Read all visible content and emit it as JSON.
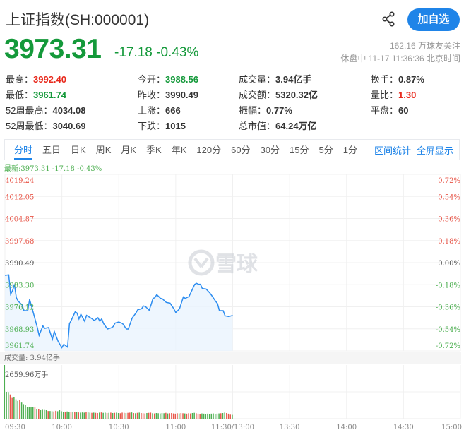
{
  "header": {
    "title": "上证指数(SH:000001)",
    "add_button": "加自选",
    "price": "3973.31",
    "change": "-17.18",
    "change_pct": "-0.43%",
    "followers": "162.16 万球友关注",
    "status": "休盘中 11-17 11:36:36 北京时间"
  },
  "stats": [
    {
      "label": "最高：",
      "value": "3992.40",
      "color": "red"
    },
    {
      "label": "今开：",
      "value": "3988.56",
      "color": "green"
    },
    {
      "label": "成交量：",
      "value": "3.94亿手",
      "color": ""
    },
    {
      "label": "换手：",
      "value": "0.87%",
      "color": ""
    },
    {
      "label": "最低：",
      "value": "3961.74",
      "color": "green"
    },
    {
      "label": "昨收：",
      "value": "3990.49",
      "color": ""
    },
    {
      "label": "成交额：",
      "value": "5320.32亿",
      "color": ""
    },
    {
      "label": "量比：",
      "value": "1.30",
      "color": "red"
    },
    {
      "label": "52周最高：",
      "value": "4034.08",
      "color": ""
    },
    {
      "label": "上涨：",
      "value": "666",
      "color": ""
    },
    {
      "label": "振幅：",
      "value": "0.77%",
      "color": ""
    },
    {
      "label": "平盘：",
      "value": "60",
      "color": ""
    },
    {
      "label": "52周最低：",
      "value": "3040.69",
      "color": ""
    },
    {
      "label": "下跌：",
      "value": "1015",
      "color": ""
    },
    {
      "label": "总市值：",
      "value": "64.24万亿",
      "color": ""
    }
  ],
  "tabs": [
    "分时",
    "五日",
    "日K",
    "周K",
    "月K",
    "季K",
    "年K",
    "120分",
    "60分",
    "30分",
    "15分",
    "5分",
    "1分"
  ],
  "active_tab": "分时",
  "tab_actions": [
    "区间统计",
    "全屏显示"
  ],
  "latest": "最新:3973.31 -17.18 -0.43%",
  "watermark": "雪球",
  "volume_label": "成交量: 3.94亿手",
  "colors": {
    "up": "#e8574a",
    "down": "#4caf50",
    "line": "#2b8cf0",
    "accent": "#1f84e8"
  },
  "chart_data": {
    "type": "line",
    "prev_close": 3990.49,
    "ylim": [
      3961.74,
      4019.24
    ],
    "y_ticks": [
      "4019.24",
      "4012.05",
      "4004.87",
      "3997.68",
      "3990.49",
      "3983.30",
      "3976.12",
      "3968.93",
      "3961.74"
    ],
    "pct_ticks": [
      "0.72%",
      "0.54%",
      "0.36%",
      "0.18%",
      "0.00%",
      "-0.18%",
      "-0.36%",
      "-0.54%",
      "-0.72%"
    ],
    "x_ticks": [
      "09:30",
      "10:00",
      "10:30",
      "11:00",
      "11:30/13:00",
      "13:30",
      "14:00",
      "14:30",
      "15:00"
    ],
    "price": {
      "minutes": [
        0,
        2,
        3,
        4,
        5,
        6,
        7,
        9,
        10,
        12,
        13,
        15,
        17,
        18,
        20,
        21,
        23,
        25,
        26,
        28,
        30,
        31,
        33,
        34,
        35,
        37,
        38,
        39,
        40,
        42,
        43,
        45,
        46,
        47,
        49,
        50,
        51,
        52,
        54,
        56,
        57,
        58,
        60,
        62,
        64,
        65,
        67,
        69,
        70,
        72,
        73,
        74,
        76,
        77,
        78,
        79,
        80,
        82,
        83,
        85,
        87,
        89,
        90,
        92,
        94,
        95,
        97,
        100,
        101,
        102,
        103,
        104,
        106,
        108,
        109,
        111,
        112,
        113,
        115,
        116,
        118,
        120
      ],
      "values": [
        3986.35,
        3986.5,
        3980.22,
        3981.37,
        3983.44,
        3979.07,
        3977.92,
        3976.77,
        3974.85,
        3974.85,
        3978.53,
        3974.08,
        3969.48,
        3966.8,
        3969.87,
        3969.1,
        3969.33,
        3965.5,
        3968.1,
        3964.88,
        3962.81,
        3963.89,
        3962.97,
        3970.63,
        3971.78,
        3974.47,
        3974.08,
        3972.17,
        3973.7,
        3971.4,
        3973.32,
        3972.55,
        3972.17,
        3971.63,
        3972.55,
        3971.4,
        3972.17,
        3970.63,
        3968.87,
        3969.25,
        3969.64,
        3970.79,
        3971.17,
        3970.63,
        3968.87,
        3968.87,
        3972.4,
        3974.08,
        3975.16,
        3975.46,
        3976.38,
        3976.23,
        3975.0,
        3976.77,
        3978.84,
        3979.07,
        3980.06,
        3978.84,
        3978.68,
        3977.53,
        3977.3,
        3975.46,
        3974.24,
        3975.46,
        3979.3,
        3978.84,
        3979.45,
        3983.44,
        3983.74,
        3983.44,
        3983.44,
        3982.06,
        3981.9,
        3980.6,
        3979.76,
        3977.92,
        3977.15,
        3974.85,
        3974.85,
        3973.16,
        3972.93,
        3973.31
      ]
    },
    "volume": {
      "max_label": "2659.96万手",
      "max": 2659.96,
      "values": [
        2659.96,
        1330,
        1320,
        1200,
        1030,
        1060,
        960,
        880,
        920,
        800,
        720,
        680,
        590,
        580,
        560,
        570,
        570,
        480,
        470,
        420,
        440,
        430,
        420,
        380,
        380,
        370,
        360,
        390,
        370,
        420,
        370,
        350,
        340,
        360,
        330,
        350,
        340,
        320,
        330,
        310,
        300,
        310,
        300,
        320,
        310,
        300,
        290,
        300,
        290,
        280,
        300,
        310,
        290,
        300,
        280,
        290,
        300,
        280,
        290,
        300,
        280,
        270,
        300,
        290,
        280,
        290,
        300,
        310,
        280,
        270,
        290,
        300,
        280,
        270,
        260,
        280,
        290,
        300,
        270,
        260,
        280,
        270,
        260,
        280,
        270,
        290,
        260,
        270,
        280,
        260,
        250,
        270,
        260,
        280,
        270,
        260,
        250,
        270,
        260,
        280,
        290,
        270,
        250,
        240,
        260,
        250,
        240,
        250,
        240,
        250,
        260,
        240,
        250,
        260,
        270,
        280,
        300,
        280,
        250,
        200,
        190
      ],
      "direction": "gggrrgggrgggggggrgrggggrggrrggggrggrgrgrgggrggrgrrgrggrgrgrggrrrgrrgrgrgrrrgrrgrgggggrgrrrrrgrrgrrrggrrrggggggggggrggrrr"
    }
  }
}
